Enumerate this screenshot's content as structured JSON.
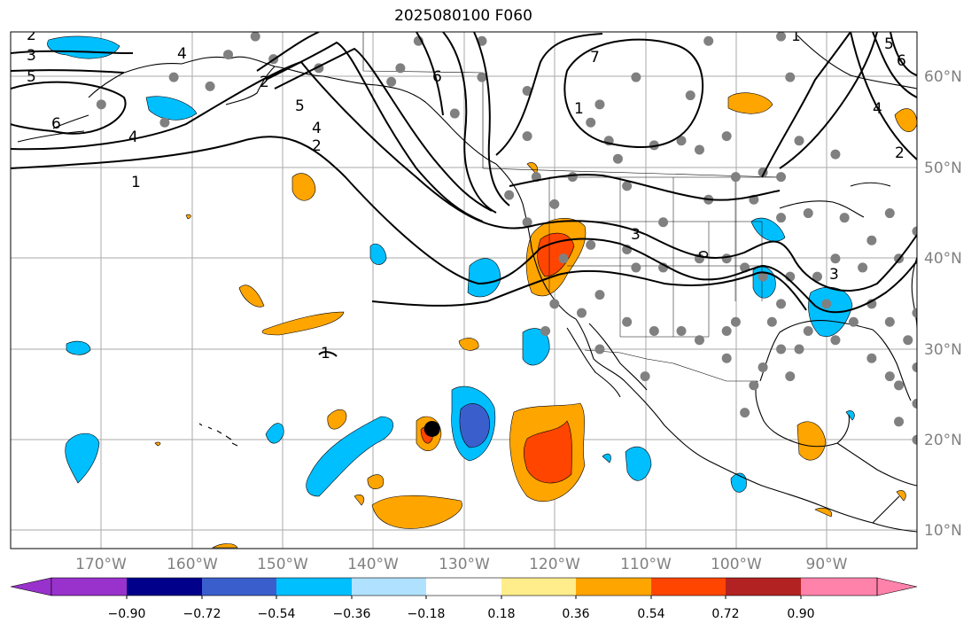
{
  "title": "2025080100 F060",
  "map": {
    "projection": "PlateCarree",
    "lon_range": [
      -180,
      -80
    ],
    "lat_range": [
      8,
      65
    ],
    "gridlines": true,
    "lon_ticks": [
      "170°W",
      "160°W",
      "150°W",
      "140°W",
      "130°W",
      "120°W",
      "110°W",
      "100°W",
      "90°W"
    ],
    "lat_ticks": [
      "10°N",
      "20°N",
      "30°N",
      "40°N",
      "50°N",
      "60°N"
    ],
    "marker": {
      "lon": -133.5,
      "lat": 21.2,
      "color": "#000000"
    },
    "contour_labels": [
      "2",
      "3",
      "5",
      "6",
      "4",
      "1",
      "6",
      "5",
      "4",
      "2",
      "1",
      "7",
      "3",
      "5",
      "6",
      "4",
      "2",
      "1",
      "4",
      "2",
      "3",
      "1"
    ]
  },
  "colorbar": {
    "boundaries": [
      -0.9,
      -0.72,
      -0.54,
      -0.36,
      -0.18,
      0.18,
      0.36,
      0.54,
      0.72,
      0.9
    ],
    "tick_labels": [
      "−0.90",
      "−0.72",
      "−0.54",
      "−0.36",
      "−0.18",
      "0.18",
      "0.36",
      "0.54",
      "0.72",
      "0.90"
    ],
    "colors": [
      "#9932cc",
      "#00008b",
      "#3a5fcd",
      "#00bfff",
      "#b0e2ff",
      "#ffffff",
      "#ffec8b",
      "#ffa500",
      "#ff4500",
      "#b22222",
      "#ff82ab"
    ],
    "extend": "both"
  },
  "station_color": "#808080"
}
